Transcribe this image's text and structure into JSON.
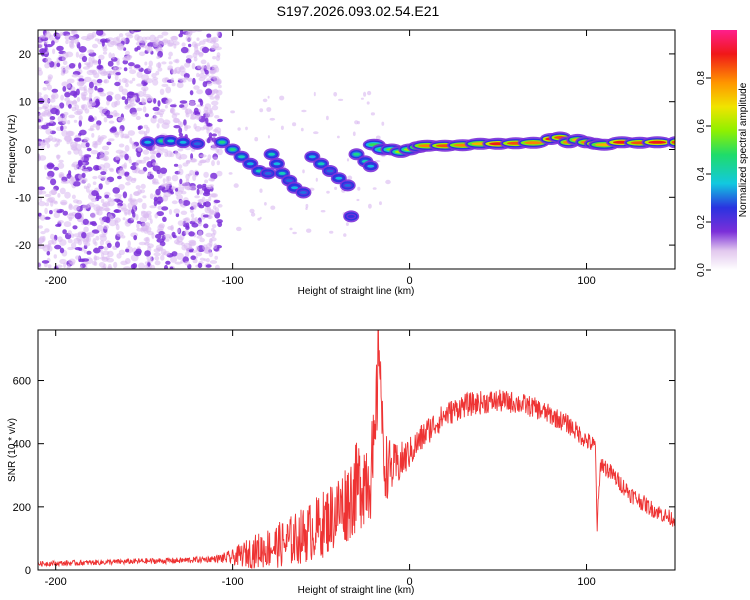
{
  "title": "S197.2026.093.02.54.E21",
  "colors": {
    "trace": "#ee3333",
    "scatter": "#7b2fd9",
    "scatter_light": "#d8b8f0",
    "axis": "#000000"
  },
  "chart_data": [
    {
      "type": "heatmap",
      "xlabel": "Height of straight line (km)",
      "ylabel": "Frequency (Hz)",
      "xlim": [
        -210,
        150
      ],
      "ylim": [
        -25,
        25
      ],
      "xticks": [
        -200,
        -100,
        0,
        100
      ],
      "xtick_labels": [
        "-200",
        "-100",
        "0",
        "100"
      ],
      "yticks": [
        -20,
        -10,
        0,
        10,
        20
      ],
      "ytick_labels": [
        "-20",
        "-10",
        "0",
        "10",
        "20"
      ],
      "colorbar": {
        "label": "Normalized spectral amplitude",
        "range": [
          0,
          1
        ],
        "ticks": [
          0,
          0.2,
          0.4,
          0.6,
          0.8
        ],
        "tick_labels": [
          "0.0",
          "0.2",
          "0.4",
          "0.6",
          "0.8"
        ]
      },
      "noise_region_x": [
        -210,
        -107
      ],
      "ridge": [
        [
          -148,
          1.5,
          0.35
        ],
        [
          -140,
          1.8,
          0.45
        ],
        [
          -135,
          1.8,
          0.38
        ],
        [
          -128,
          1.5,
          0.35
        ],
        [
          -120,
          1.2,
          0.3
        ],
        [
          -106,
          1.5,
          0.45
        ],
        [
          -100,
          0,
          0.45
        ],
        [
          -95,
          -1.5,
          0.4
        ],
        [
          -90,
          -3,
          0.35
        ],
        [
          -85,
          -4.5,
          0.4
        ],
        [
          -80,
          -5,
          0.3
        ],
        [
          -78,
          -1,
          0.4
        ],
        [
          -75,
          -3,
          0.35
        ],
        [
          -72,
          -5,
          0.4
        ],
        [
          -68,
          -6.5,
          0.3
        ],
        [
          -65,
          -8,
          0.35
        ],
        [
          -60,
          -9,
          0.3
        ],
        [
          -55,
          -1.5,
          0.35
        ],
        [
          -50,
          -3,
          0.4
        ],
        [
          -45,
          -4.5,
          0.3
        ],
        [
          -40,
          -6,
          0.35
        ],
        [
          -35,
          -7.5,
          0.3
        ],
        [
          -33,
          -14,
          0.25
        ],
        [
          -30,
          -1,
          0.45
        ],
        [
          -25,
          -2.5,
          0.4
        ],
        [
          -22,
          -3.5,
          0.35
        ],
        [
          -20,
          1,
          0.5
        ],
        [
          -15,
          0,
          0.5
        ],
        [
          -10,
          0,
          0.55
        ],
        [
          -5,
          -0.5,
          0.6
        ],
        [
          0,
          0,
          0.6
        ],
        [
          5,
          0.5,
          0.7
        ],
        [
          10,
          0.8,
          0.8
        ],
        [
          20,
          0.8,
          0.85
        ],
        [
          30,
          0.9,
          0.8
        ],
        [
          40,
          1.2,
          0.75
        ],
        [
          50,
          1.2,
          0.9
        ],
        [
          60,
          1.3,
          0.85
        ],
        [
          70,
          1.4,
          0.8
        ],
        [
          80,
          2.2,
          0.9
        ],
        [
          85,
          2.5,
          0.85
        ],
        [
          90,
          1.5,
          0.8
        ],
        [
          95,
          2,
          0.75
        ],
        [
          100,
          1.5,
          0.8
        ],
        [
          105,
          1.2,
          0.85
        ],
        [
          110,
          1,
          0.75
        ],
        [
          120,
          1.5,
          0.9
        ],
        [
          130,
          1.4,
          0.85
        ],
        [
          140,
          1.5,
          0.9
        ],
        [
          150,
          1.5,
          0.85
        ]
      ]
    },
    {
      "type": "line",
      "xlabel": "Height of straight line (km)",
      "ylabel": "SNR (10 * v/v)",
      "xlim": [
        -210,
        150
      ],
      "ylim": [
        0,
        760
      ],
      "xticks": [
        -200,
        -100,
        0,
        100
      ],
      "xtick_labels": [
        "-200",
        "-100",
        "0",
        "100"
      ],
      "yticks": [
        0,
        200,
        400,
        600
      ],
      "ytick_labels": [
        "0",
        "200",
        "400",
        "600"
      ],
      "series": [
        {
          "name": "SNR",
          "x": [
            -210,
            -190,
            -170,
            -150,
            -130,
            -110,
            -100,
            -90,
            -80,
            -70,
            -60,
            -50,
            -45,
            -40,
            -35,
            -30,
            -25,
            -20,
            -17,
            -15,
            -13,
            -10,
            -5,
            0,
            10,
            20,
            30,
            40,
            50,
            60,
            70,
            80,
            90,
            100,
            105,
            106,
            108,
            115,
            125,
            135,
            145,
            150
          ],
          "y": [
            20,
            22,
            25,
            28,
            30,
            35,
            40,
            55,
            70,
            85,
            110,
            140,
            165,
            190,
            220,
            260,
            300,
            330,
            760,
            350,
            330,
            320,
            340,
            370,
            440,
            490,
            520,
            530,
            535,
            530,
            515,
            490,
            460,
            410,
            390,
            140,
            340,
            300,
            240,
            200,
            170,
            160
          ]
        }
      ],
      "noise_amplitude": [
        [
          -210,
          8
        ],
        [
          -110,
          10
        ],
        [
          -100,
          25
        ],
        [
          -90,
          50
        ],
        [
          -80,
          65
        ],
        [
          -60,
          90
        ],
        [
          -40,
          120
        ],
        [
          -20,
          170
        ],
        [
          -10,
          80
        ],
        [
          0,
          50
        ],
        [
          20,
          40
        ],
        [
          60,
          35
        ],
        [
          100,
          30
        ],
        [
          150,
          25
        ]
      ]
    }
  ]
}
